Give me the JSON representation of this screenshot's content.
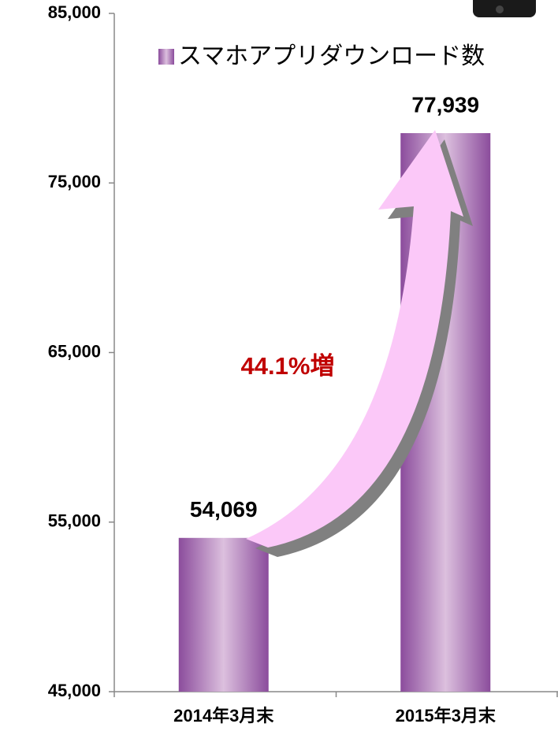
{
  "chart_data": {
    "type": "bar",
    "categories": [
      "2014年3月末",
      "2015年3月末"
    ],
    "series": [
      {
        "name": "スマホアプリダウンロード数",
        "color": "#8b4c9c",
        "values": [
          54069,
          77939
        ],
        "value_labels": [
          "54,069",
          "77,939"
        ]
      }
    ],
    "ylim": [
      45000,
      85000
    ],
    "yticks": [
      {
        "value": 45000,
        "label": "45,000"
      },
      {
        "value": 55000,
        "label": "55,000"
      },
      {
        "value": 65000,
        "label": "65,000"
      },
      {
        "value": 75000,
        "label": "75,000"
      },
      {
        "value": 85000,
        "label": "85,000"
      }
    ],
    "annotation": "44.1%増",
    "grid": false,
    "legend": "top"
  }
}
